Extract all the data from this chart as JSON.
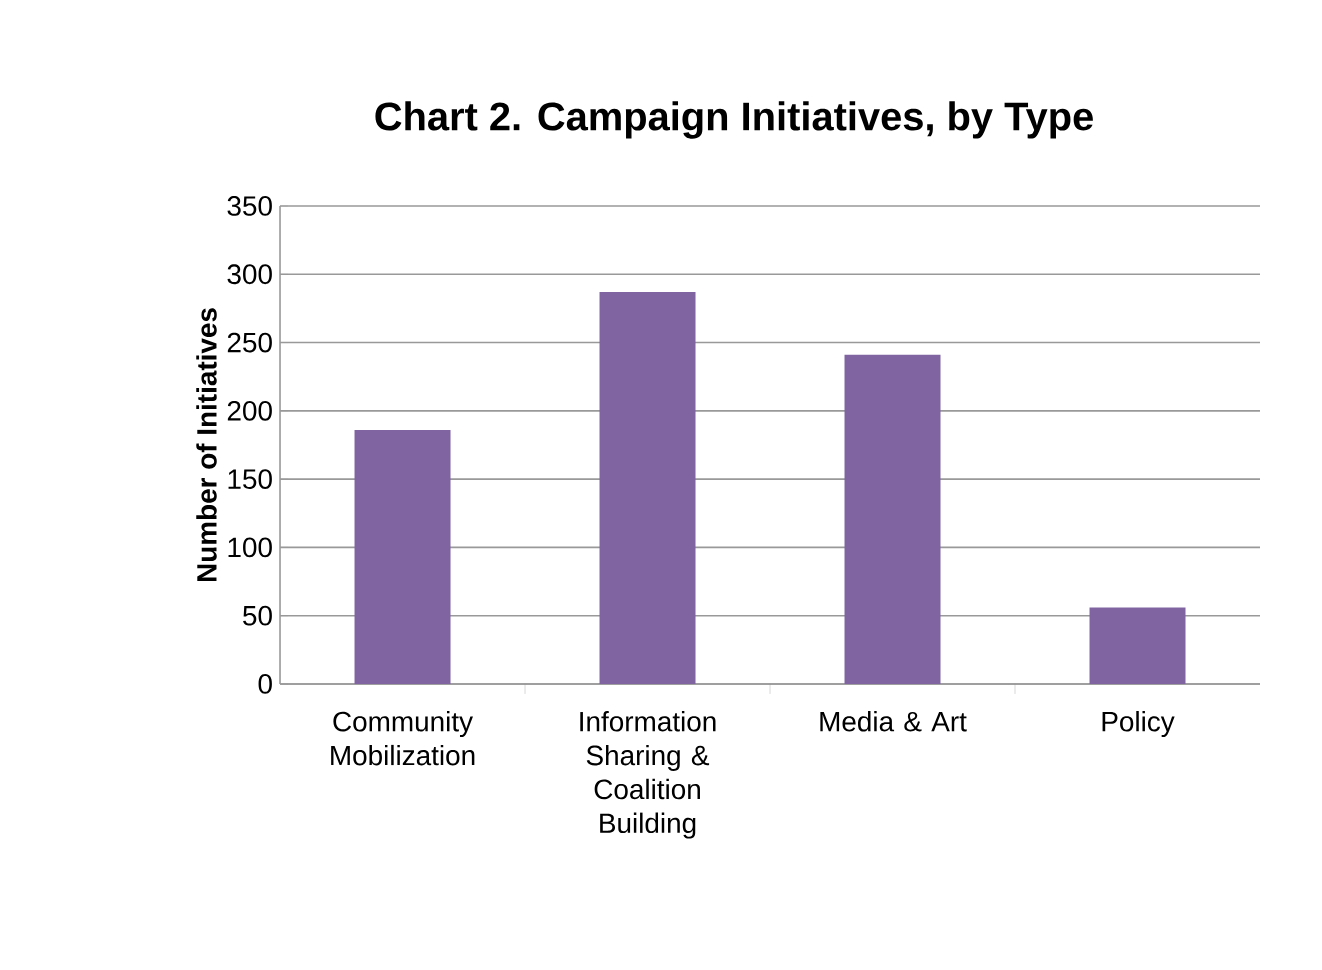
{
  "chart_data": {
    "type": "bar",
    "title": "Chart 2. Campaign Initiatives, by Type",
    "ylabel": "Number of Initiatives",
    "categories": [
      "Community Mobilization",
      "Information Sharing & Coalition Building",
      "Media & Art",
      "Policy"
    ],
    "values": [
      186,
      287,
      241,
      56
    ],
    "color": "#8064a2",
    "ylim": [
      0,
      350
    ],
    "yticks": [
      0,
      50,
      100,
      150,
      200,
      250,
      300,
      350
    ],
    "grid": "y"
  }
}
